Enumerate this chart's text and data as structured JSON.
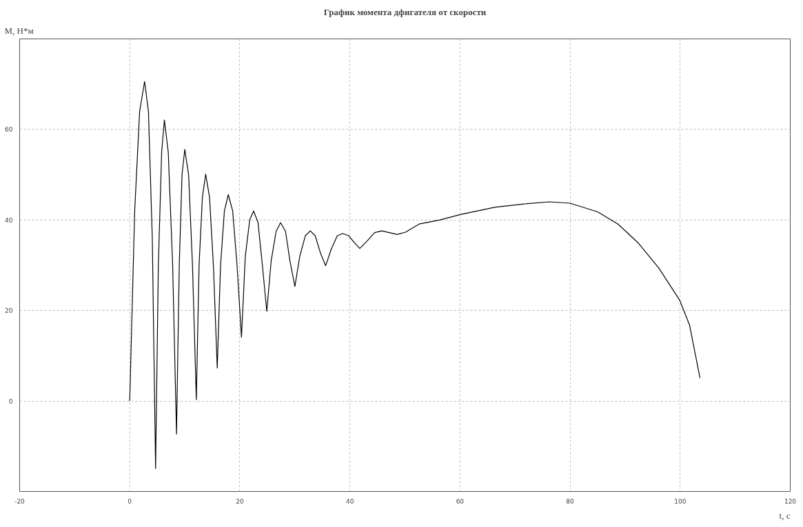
{
  "chart_data": {
    "type": "line",
    "title": "График момента дфигателя от скорости",
    "xlabel": "t, c",
    "ylabel": "M, H*м",
    "xlim": [
      -20,
      120
    ],
    "ylim": [
      -20,
      80
    ],
    "xticks": [
      -20,
      0,
      20,
      40,
      60,
      80,
      100,
      120
    ],
    "yticks": [
      0,
      20,
      40,
      60
    ],
    "grid": true,
    "series": [
      {
        "color": "#000000",
        "x": [
          0,
          0.9,
          1.8,
          2.7,
          3.4,
          4.1,
          4.7,
          5.2,
          5.8,
          6.3,
          7.0,
          7.8,
          8.5,
          9.0,
          9.5,
          10.0,
          10.7,
          11.4,
          12.1,
          12.6,
          13.2,
          13.8,
          14.5,
          15.2,
          15.9,
          16.5,
          17.2,
          17.9,
          18.7,
          19.5,
          20.3,
          21.0,
          21.8,
          22.5,
          23.3,
          24.1,
          24.9,
          25.7,
          26.6,
          27.4,
          28.3,
          29.1,
          30.0,
          30.9,
          31.9,
          32.8,
          33.7,
          34.7,
          35.6,
          36.6,
          37.7,
          38.7,
          39.8,
          40.8,
          41.8,
          43.1,
          44.5,
          45.8,
          48.6,
          50.1,
          52.6,
          56.3,
          60.1,
          66.3,
          71.3,
          76.2,
          80,
          85,
          88.7,
          92.4,
          96.1,
          99.9,
          101.7,
          103.6
        ],
        "values": [
          0,
          42,
          64,
          70.6,
          64,
          36,
          -14.9,
          30,
          55,
          62.1,
          55,
          30,
          -7.3,
          30,
          50,
          55.6,
          50,
          30,
          0.3,
          30,
          45,
          50.1,
          45,
          30,
          7.3,
          30,
          42,
          45.6,
          42,
          30,
          14.1,
          32,
          40,
          42.0,
          39.5,
          30,
          19.8,
          31,
          37.5,
          39.4,
          37.5,
          31,
          25.3,
          32,
          36.5,
          37.6,
          36.5,
          32.5,
          29.9,
          33.5,
          36.5,
          37.0,
          36.5,
          35,
          33.7,
          35.3,
          37.2,
          37.6,
          36.8,
          37.3,
          39.1,
          40,
          41.2,
          42.8,
          43.5,
          44.0,
          43.7,
          41.8,
          39.1,
          34.9,
          29.4,
          22.3,
          16.8,
          5.1
        ]
      }
    ]
  }
}
